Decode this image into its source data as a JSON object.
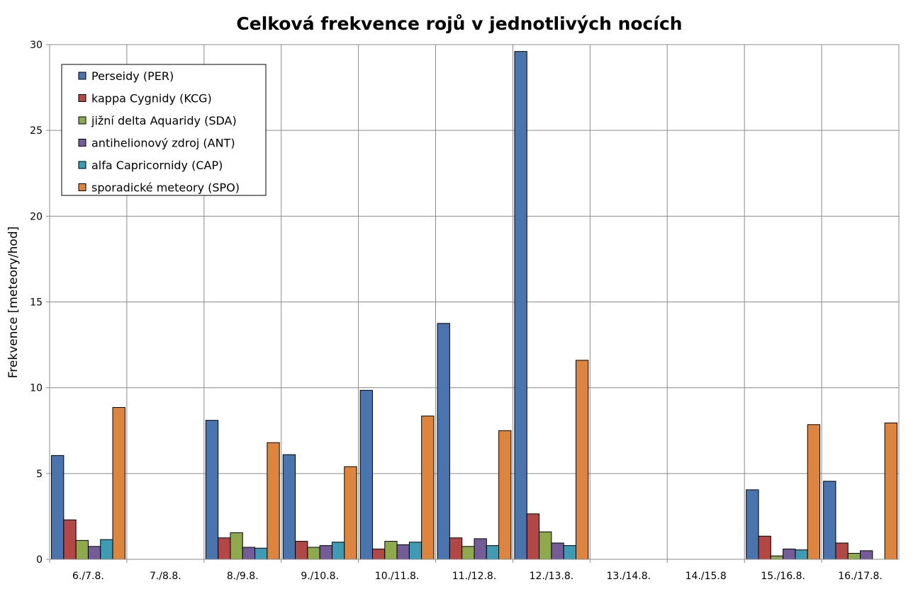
{
  "chart_data": {
    "type": "bar",
    "title": "Celková frekvence rojů v jednotlivých nocích",
    "xlabel": "",
    "ylabel": "Frekvence [meteory/hod]",
    "ylim": [
      0,
      30
    ],
    "yticks": [
      0,
      5,
      10,
      15,
      20,
      25,
      30
    ],
    "grid": true,
    "legend_position": "top-left",
    "categories": [
      "6./7.8.",
      "7./8.8.",
      "8./9.8.",
      "9./10.8.",
      "10./11.8.",
      "11./12.8.",
      "12./13.8.",
      "13./14.8.",
      "14./15.8",
      "15./16.8.",
      "16./17.8."
    ],
    "series": [
      {
        "name": "Perseidy (PER)",
        "color": "#4a74ad",
        "values": [
          6.05,
          null,
          8.1,
          6.1,
          9.85,
          13.75,
          29.6,
          null,
          null,
          4.05,
          4.55
        ]
      },
      {
        "name": "kappa Cygnidy (KCG)",
        "color": "#b24746",
        "values": [
          2.3,
          null,
          1.25,
          1.05,
          0.6,
          1.25,
          2.65,
          null,
          null,
          1.35,
          0.95
        ]
      },
      {
        "name": "jižní delta Aquaridy (SDA)",
        "color": "#8fa94d",
        "values": [
          1.1,
          null,
          1.55,
          0.7,
          1.05,
          0.75,
          1.6,
          null,
          null,
          0.2,
          0.35
        ]
      },
      {
        "name": "antihelionový zdroj (ANT)",
        "color": "#745c98",
        "values": [
          0.75,
          null,
          0.7,
          0.8,
          0.85,
          1.2,
          0.95,
          null,
          null,
          0.6,
          0.5
        ]
      },
      {
        "name": "alfa Capricornidy (CAP)",
        "color": "#3d9bb3",
        "values": [
          1.15,
          null,
          0.65,
          1.0,
          1.0,
          0.8,
          0.8,
          null,
          null,
          0.55,
          null
        ]
      },
      {
        "name": "sporadické meteory (SPO)",
        "color": "#dd853e",
        "values": [
          8.85,
          null,
          6.8,
          5.4,
          8.35,
          7.5,
          11.6,
          null,
          null,
          7.85,
          7.95
        ]
      }
    ]
  }
}
